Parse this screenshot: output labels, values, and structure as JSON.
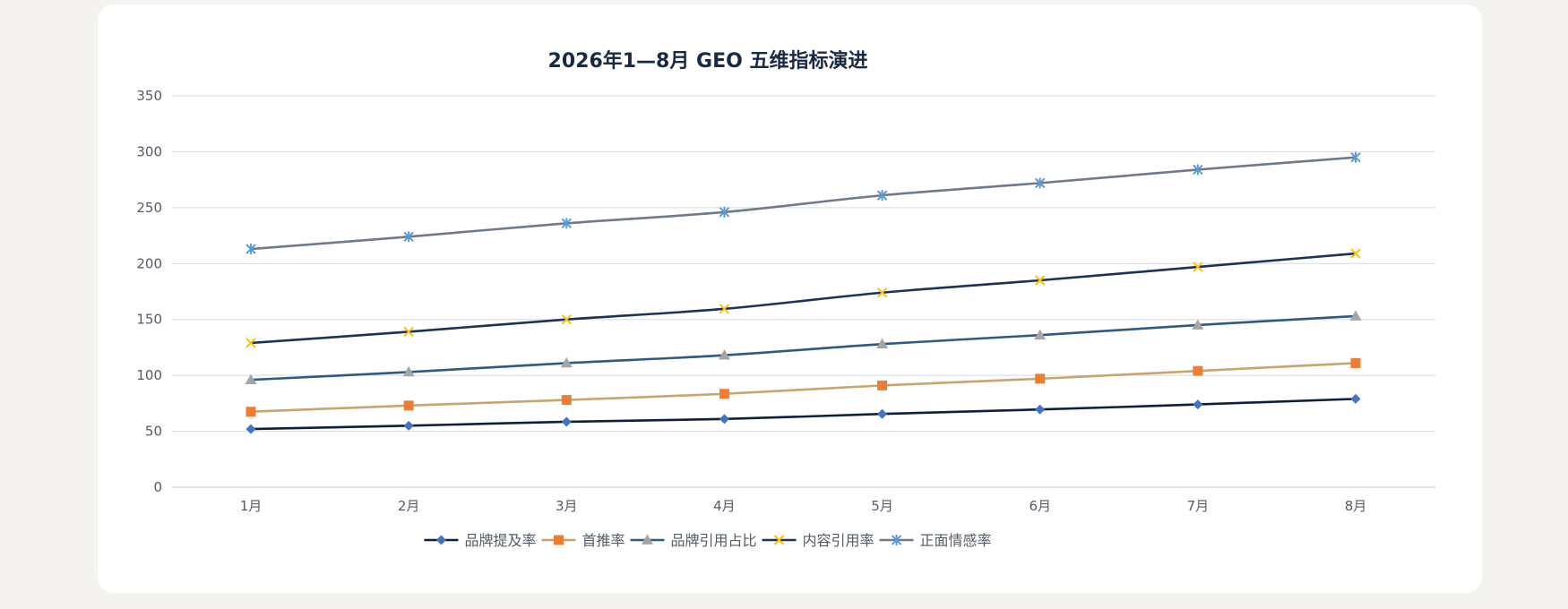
{
  "chart_data": {
    "type": "line",
    "title": "2026年1—8月 GEO 五维指标演进",
    "xlabel": "",
    "ylabel": "",
    "categories": [
      "1月",
      "2月",
      "3月",
      "4月",
      "5月",
      "6月",
      "7月",
      "8月"
    ],
    "y_ticks": [
      "0",
      "50",
      "100",
      "150",
      "200",
      "250",
      "300",
      "350"
    ],
    "ylim": [
      0,
      350
    ],
    "grid": true,
    "legend": "bottom",
    "series": [
      {
        "name": "品牌提及率",
        "values": [
          52,
          55,
          58.5,
          61,
          65.5,
          69.5,
          74,
          79
        ],
        "line_color": "#0f1f3d",
        "marker": "diamond",
        "marker_color": "#4472c4"
      },
      {
        "name": "首推率",
        "values": [
          67.5,
          73,
          78,
          83.5,
          91,
          97,
          104,
          111
        ],
        "line_color": "#c9a46b",
        "marker": "square",
        "marker_color": "#ed7d31"
      },
      {
        "name": "品牌引用占比",
        "values": [
          96,
          103,
          111,
          118,
          128,
          136,
          145,
          153
        ],
        "line_color": "#2e5a87",
        "marker": "triangle",
        "marker_color": "#a5a5a5"
      },
      {
        "name": "内容引用率",
        "values": [
          129,
          139,
          150,
          159.5,
          174,
          185,
          197,
          209
        ],
        "line_color": "#1c3257",
        "marker": "x",
        "marker_color": "#ffc000"
      },
      {
        "name": "正面情感率",
        "values": [
          213,
          224,
          236,
          246,
          261,
          272,
          284,
          295
        ],
        "line_color": "#707a89",
        "marker": "star",
        "marker_color": "#5b9bd5"
      }
    ]
  }
}
